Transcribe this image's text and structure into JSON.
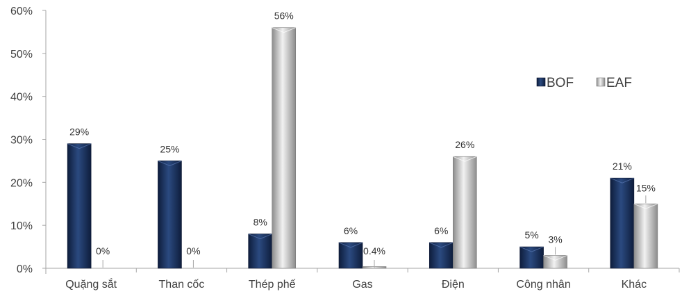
{
  "chart_data": {
    "type": "bar",
    "categories": [
      "Quặng sắt",
      "Than cốc",
      "Thép phế",
      "Gas",
      "Điện",
      "Công nhân",
      "Khác"
    ],
    "series": [
      {
        "name": "BOF",
        "values": [
          29,
          25,
          8,
          6,
          6,
          5,
          21
        ],
        "labels": [
          "29%",
          "25%",
          "8%",
          "6%",
          "6%",
          "5%",
          "21%"
        ],
        "color": "#1f3864"
      },
      {
        "name": "EAF",
        "values": [
          0,
          0,
          56,
          0.4,
          26,
          3,
          15
        ],
        "labels": [
          "0%",
          "0%",
          "56%",
          "0.4%",
          "26%",
          "3%",
          "15%"
        ],
        "color": "#bfbfbf"
      }
    ],
    "ylim": [
      0,
      60
    ],
    "yticks": [
      "0%",
      "10%",
      "20%",
      "30%",
      "40%",
      "50%",
      "60%"
    ],
    "ytick_values": [
      0,
      10,
      20,
      30,
      40,
      50,
      60
    ],
    "grid": false,
    "legend_position": "right"
  }
}
